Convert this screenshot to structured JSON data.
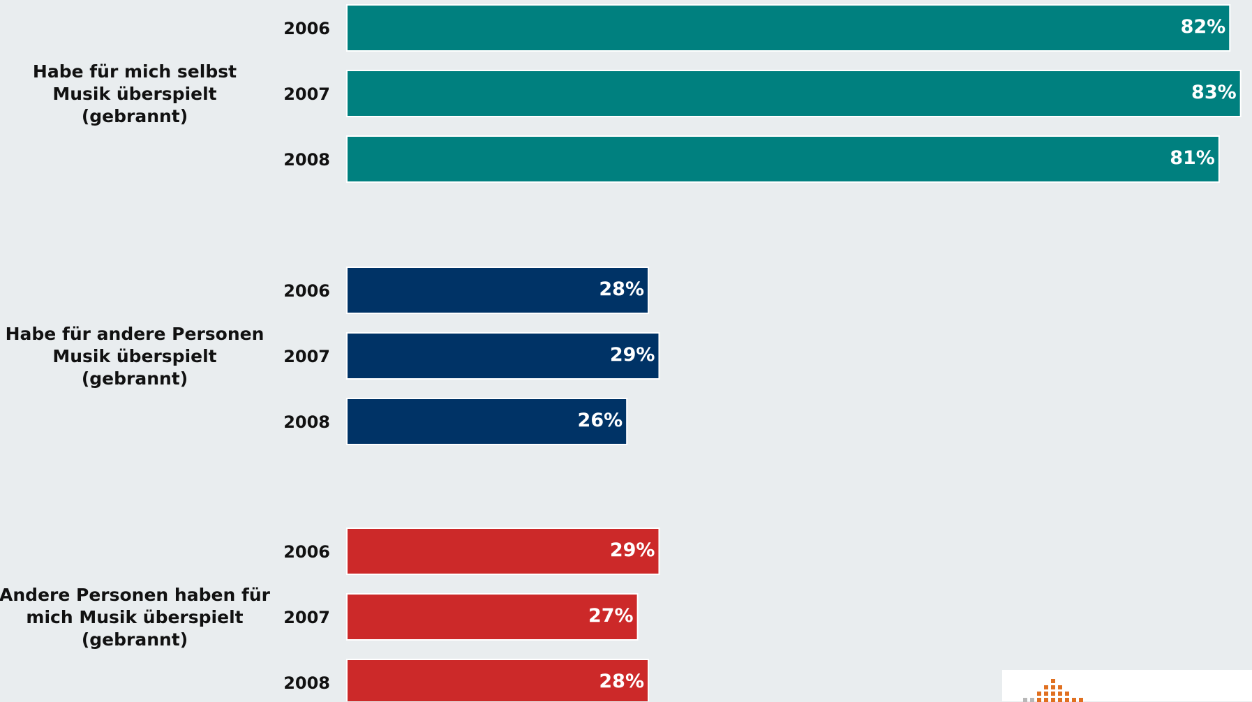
{
  "chart_data": {
    "type": "bar",
    "orientation": "horizontal",
    "xlim": [
      0,
      100
    ],
    "value_suffix": "%",
    "groups": [
      {
        "label_lines": [
          "Habe für mich selbst",
          "Musik überspielt",
          "(gebrannt)"
        ],
        "color": "#00807f",
        "bars": [
          {
            "year": "2006",
            "value": 82,
            "label": "82%"
          },
          {
            "year": "2007",
            "value": 83,
            "label": "83%"
          },
          {
            "year": "2008",
            "value": 81,
            "label": "81%"
          }
        ]
      },
      {
        "label_lines": [
          "Habe für andere Personen",
          "Musik überspielt",
          "(gebrannt)"
        ],
        "color": "#003366",
        "bars": [
          {
            "year": "2006",
            "value": 28,
            "label": "28%"
          },
          {
            "year": "2007",
            "value": 29,
            "label": "29%"
          },
          {
            "year": "2008",
            "value": 26,
            "label": "26%"
          }
        ]
      },
      {
        "label_lines": [
          "Andere Personen haben für",
          "mich Musik überspielt",
          "(gebrannt)"
        ],
        "color": "#cc2929",
        "bars": [
          {
            "year": "2006",
            "value": 29,
            "label": "29%"
          },
          {
            "year": "2007",
            "value": 27,
            "label": "27%"
          },
          {
            "year": "2008",
            "value": 28,
            "label": "28%"
          }
        ]
      }
    ]
  },
  "logo": {
    "icon": "equalizer-dots-logo",
    "colors": [
      "#e07020",
      "#b8b8b8"
    ]
  }
}
